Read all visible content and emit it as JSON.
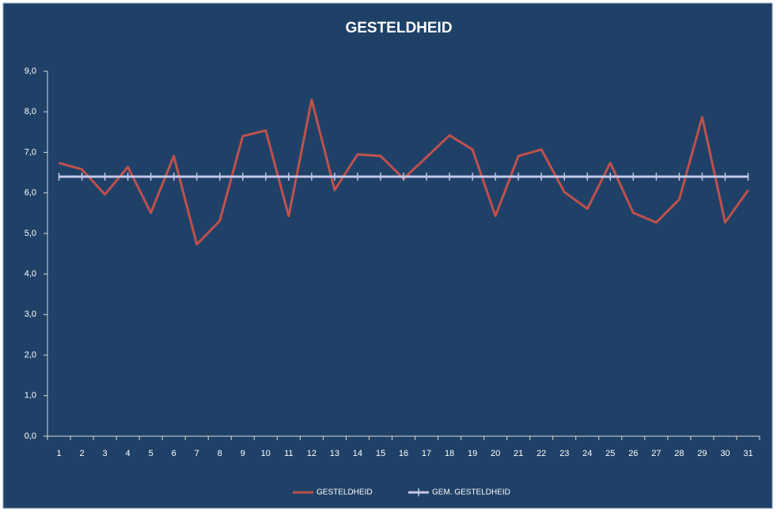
{
  "chart_data": {
    "type": "line",
    "title": "GESTELDHEID",
    "categories": [
      "1",
      "2",
      "3",
      "4",
      "5",
      "6",
      "7",
      "8",
      "9",
      "10",
      "11",
      "12",
      "13",
      "14",
      "15",
      "16",
      "17",
      "18",
      "19",
      "20",
      "21",
      "22",
      "23",
      "24",
      "25",
      "26",
      "27",
      "28",
      "29",
      "30",
      "31"
    ],
    "series": [
      {
        "name": "GESTELDHEID",
        "color": "#c0504d",
        "values": [
          6.74,
          6.58,
          5.96,
          6.64,
          5.51,
          6.91,
          4.73,
          5.31,
          7.4,
          7.54,
          5.43,
          8.3,
          6.07,
          6.95,
          6.91,
          6.35,
          6.88,
          7.42,
          7.07,
          5.43,
          6.91,
          7.07,
          6.02,
          5.61,
          6.74,
          5.51,
          5.27,
          5.84,
          7.87,
          5.27,
          6.07
        ]
      },
      {
        "name": "GEM. GESTELDHEID",
        "color": "#c5c8e8",
        "values": [
          6.4,
          6.4,
          6.4,
          6.4,
          6.4,
          6.4,
          6.4,
          6.4,
          6.4,
          6.4,
          6.4,
          6.4,
          6.4,
          6.4,
          6.4,
          6.4,
          6.4,
          6.4,
          6.4,
          6.4,
          6.4,
          6.4,
          6.4,
          6.4,
          6.4,
          6.4,
          6.4,
          6.4,
          6.4,
          6.4,
          6.4
        ]
      }
    ],
    "ylim": [
      0,
      9
    ],
    "yticks": [
      {
        "value": 0,
        "label": "0,0"
      },
      {
        "value": 1,
        "label": "1,0"
      },
      {
        "value": 2,
        "label": "2,0"
      },
      {
        "value": 3,
        "label": "3,0"
      },
      {
        "value": 4,
        "label": "4,0"
      },
      {
        "value": 5,
        "label": "5,0"
      },
      {
        "value": 6,
        "label": "6,0"
      },
      {
        "value": 7,
        "label": "7,0"
      },
      {
        "value": 8,
        "label": "8,0"
      },
      {
        "value": 9,
        "label": "9,0"
      }
    ],
    "grid": false,
    "legend": "bottom"
  }
}
